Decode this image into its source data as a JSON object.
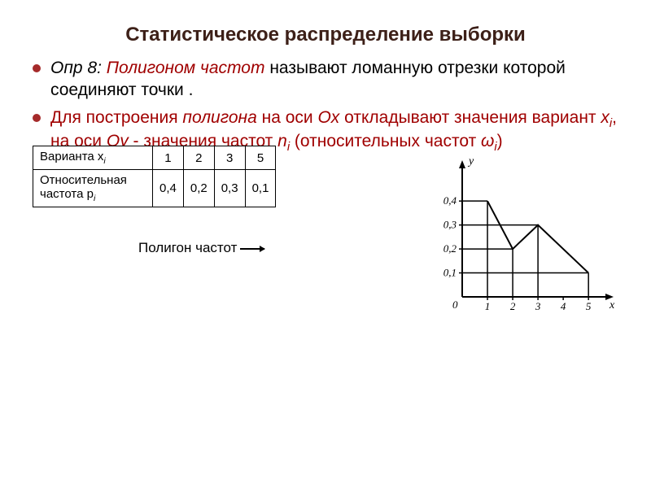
{
  "title": "Статистическое распределение выборки",
  "bullets": {
    "b1_prefix": "Опр 8: ",
    "b1_term": "Полигоном частот ",
    "b1_rest": "называют ломанную отрезки которой соединяют точки .",
    "b2_a": "Для построения ",
    "b2_b": "полигона",
    "b2_c": " на оси ",
    "b2_d": "Ox",
    "b2_e": " откладывают значения вариант ",
    "b2_f": "x",
    "b2_g": ", на оси ",
    "b2_h": "Oy",
    "b2_i": " - значения частот ",
    "b2_j": "n",
    "b2_k": " (относительных частот ",
    "b2_l": ")"
  },
  "subscript_i": "i",
  "table": {
    "row1_label": "Варианта x",
    "row1_sub": "i",
    "row2_label": "Относительная частота p",
    "row2_sub": "i",
    "cols": [
      "1",
      "2",
      "3",
      "5"
    ],
    "vals": [
      "0,4",
      "0,2",
      "0,3",
      "0,1"
    ]
  },
  "caption": "Полигон частот",
  "chart": {
    "type": "line",
    "x_values": [
      1,
      2,
      3,
      5
    ],
    "y_values": [
      0.4,
      0.2,
      0.3,
      0.1
    ],
    "y_ticks": [
      0.1,
      0.2,
      0.3,
      0.4
    ],
    "y_tick_labels": [
      "0,1",
      "0,2",
      "0,3",
      "0,4"
    ],
    "x_ticks": [
      1,
      2,
      3,
      4,
      5
    ],
    "x_tick_labels": [
      "1",
      "2",
      "3",
      "4",
      "5"
    ],
    "origin_label": "0",
    "x_axis_label": "x",
    "y_axis_label": "y",
    "xlim": [
      0,
      5.8
    ],
    "ylim": [
      0,
      0.55
    ],
    "line_color": "#000000",
    "line_width": 2,
    "background": "#ffffff",
    "dropline_width": 1.5,
    "tick_fontsize": 13,
    "axis_label_fontsize": 14
  },
  "colors": {
    "title": "#3d2018",
    "bullet": "#a52a2a",
    "red_text": "#a00000"
  }
}
